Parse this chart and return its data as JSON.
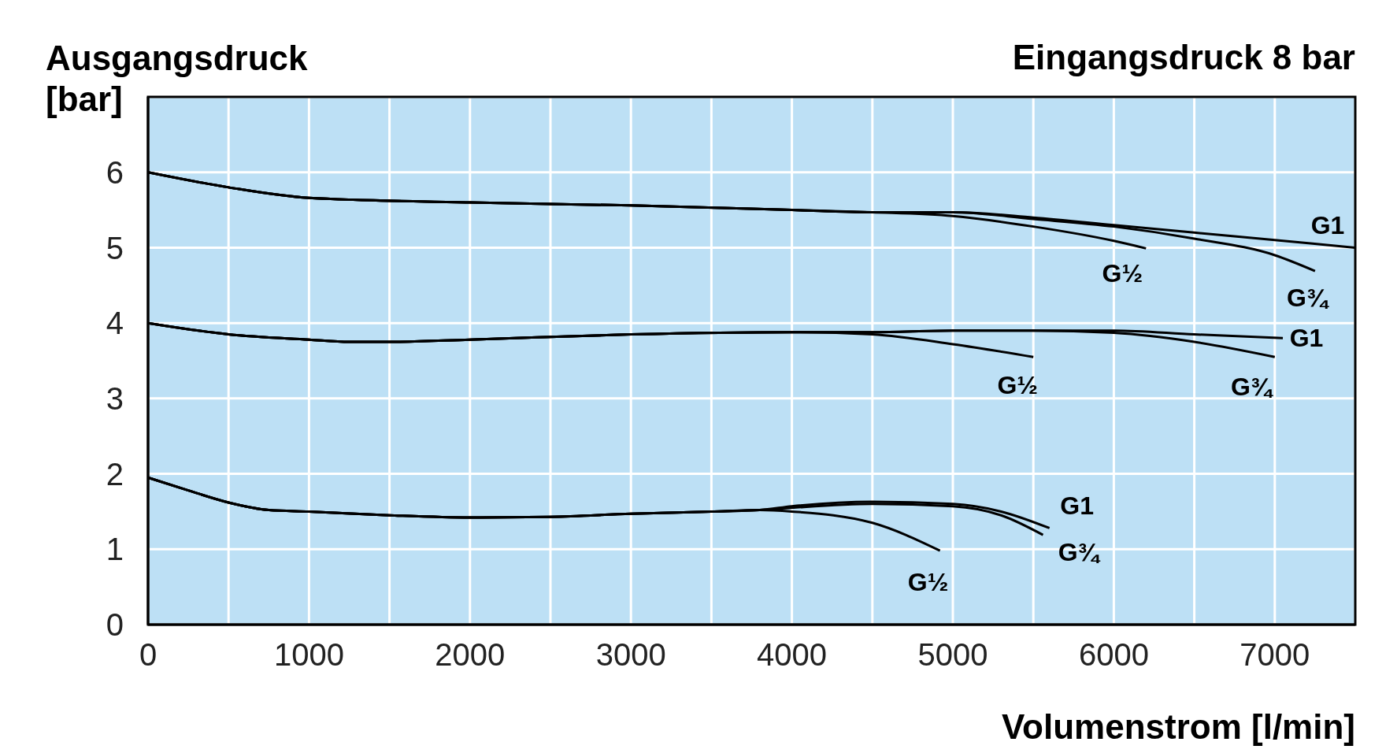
{
  "chart_data": {
    "type": "line",
    "title": "Eingangsdruck 8 bar",
    "xlabel": "Volumenstrom [l/min]",
    "ylabel": "Ausgangsdruck\n[bar]",
    "xlim": [
      0,
      7500
    ],
    "xticks": [
      0,
      {
        "value": 500,
        "label": null
      },
      1000,
      {
        "value": 1500,
        "label": null
      },
      2000,
      {
        "value": 2500,
        "label": null
      },
      3000,
      {
        "value": 3500,
        "label": null
      },
      4000,
      {
        "value": 4500,
        "label": null
      },
      5000,
      {
        "value": 5500,
        "label": null
      },
      6000,
      {
        "value": 6500,
        "label": null
      },
      7000,
      {
        "value": 7500,
        "label": null
      }
    ],
    "ylim": [
      0,
      7
    ],
    "yticks": [
      0,
      1,
      2,
      3,
      4,
      5,
      6,
      {
        "value": 7,
        "label": null
      }
    ],
    "grid": true,
    "line_style": "solid",
    "series": [
      {
        "name": "G½",
        "color": "#000000",
        "x": [
          0,
          500,
          1000,
          2000,
          3000,
          4000,
          4500,
          5000,
          5500,
          6000,
          6200
        ],
        "values": [
          6,
          5.8,
          5.66,
          5.6,
          5.56,
          5.5,
          5.47,
          5.42,
          5.28,
          5.09,
          4.99
        ]
      },
      {
        "name": "G¾",
        "color": "#000000",
        "x": [
          0,
          500,
          1000,
          2000,
          3000,
          4000,
          4500,
          5000,
          5500,
          6000,
          6500,
          7000,
          7250
        ],
        "values": [
          6,
          5.8,
          5.66,
          5.6,
          5.56,
          5.5,
          5.47,
          5.47,
          5.38,
          5.28,
          5.12,
          4.9,
          4.69
        ]
      },
      {
        "name": "G1",
        "color": "#000000",
        "x": [
          0,
          500,
          1000,
          2000,
          3000,
          4000,
          4500,
          5000,
          5500,
          6000,
          6500,
          7000,
          7500
        ],
        "values": [
          6,
          5.8,
          5.66,
          5.6,
          5.56,
          5.5,
          5.47,
          5.47,
          5.4,
          5.3,
          5.2,
          5.1,
          5.0
        ]
      },
      {
        "name": "G½",
        "color": "#000000",
        "x": [
          0,
          500,
          1000,
          1250,
          1500,
          2000,
          3000,
          4000,
          4500,
          5000,
          5500
        ],
        "values": [
          4,
          3.85,
          3.78,
          3.75,
          3.75,
          3.78,
          3.85,
          3.88,
          3.85,
          3.72,
          3.55
        ]
      },
      {
        "name": "G¾",
        "color": "#000000",
        "x": [
          0,
          500,
          1000,
          1250,
          1500,
          2000,
          3000,
          4000,
          4500,
          5000,
          5500,
          6000,
          6500,
          7000
        ],
        "values": [
          4,
          3.85,
          3.78,
          3.75,
          3.75,
          3.78,
          3.85,
          3.88,
          3.88,
          3.9,
          3.9,
          3.87,
          3.75,
          3.55
        ]
      },
      {
        "name": "G1",
        "color": "#000000",
        "x": [
          0,
          500,
          1000,
          1250,
          1500,
          2000,
          3000,
          4000,
          4500,
          5000,
          6000,
          6500,
          7050
        ],
        "values": [
          4,
          3.85,
          3.78,
          3.75,
          3.75,
          3.78,
          3.85,
          3.88,
          3.88,
          3.9,
          3.9,
          3.85,
          3.8
        ]
      },
      {
        "name": "G½",
        "color": "#000000",
        "x": [
          0,
          250,
          500,
          750,
          1000,
          1500,
          2000,
          2500,
          3000,
          3500,
          3800,
          4000,
          4500,
          4920
        ],
        "values": [
          1.95,
          1.78,
          1.62,
          1.52,
          1.5,
          1.45,
          1.42,
          1.43,
          1.47,
          1.5,
          1.52,
          1.5,
          1.35,
          0.98
        ]
      },
      {
        "name": "G¾",
        "color": "#000000",
        "x": [
          0,
          250,
          500,
          750,
          1000,
          1500,
          2000,
          2500,
          3000,
          3500,
          3800,
          4000,
          4500,
          5000,
          5300,
          5560
        ],
        "values": [
          1.95,
          1.78,
          1.62,
          1.52,
          1.5,
          1.45,
          1.42,
          1.43,
          1.47,
          1.5,
          1.52,
          1.55,
          1.6,
          1.57,
          1.45,
          1.19
        ]
      },
      {
        "name": "G1",
        "color": "#000000",
        "x": [
          0,
          250,
          500,
          750,
          1000,
          1500,
          2000,
          2500,
          3000,
          3500,
          3800,
          4000,
          4500,
          5000,
          5300,
          5600
        ],
        "values": [
          1.95,
          1.78,
          1.62,
          1.52,
          1.5,
          1.45,
          1.42,
          1.43,
          1.47,
          1.5,
          1.52,
          1.57,
          1.63,
          1.6,
          1.5,
          1.28
        ]
      }
    ]
  }
}
